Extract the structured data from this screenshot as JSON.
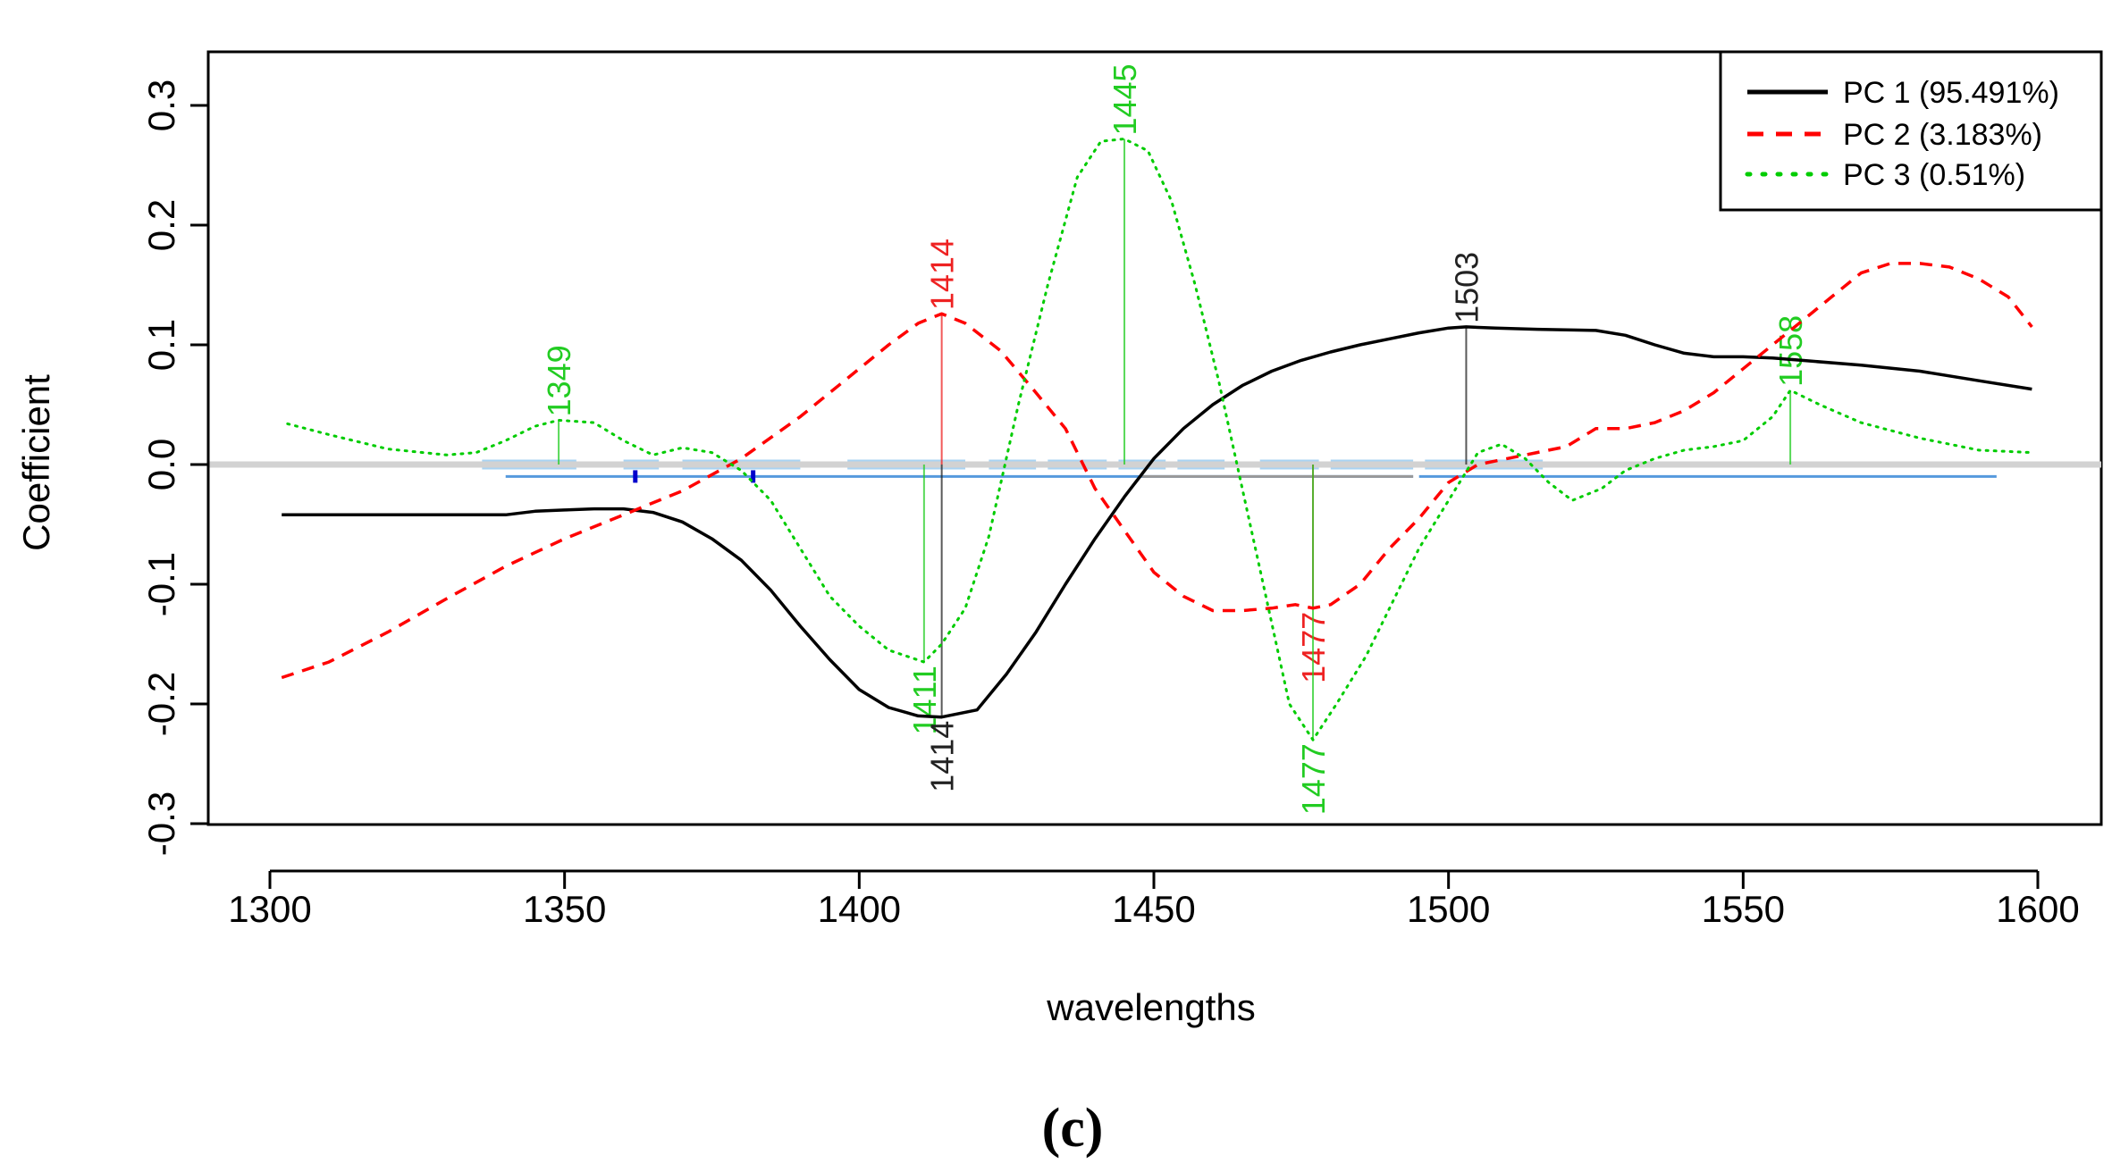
{
  "panel_label": "(c)",
  "chart_data": {
    "type": "line",
    "title": "",
    "xlabel": "wavelengths",
    "ylabel": "Coefficient",
    "xlim": [
      1290,
      1600
    ],
    "ylim": [
      -0.3,
      0.33
    ],
    "xticks": [
      1300,
      1350,
      1400,
      1450,
      1500,
      1550,
      1600
    ],
    "xtick_labels": [
      "1300",
      "1350",
      "1400",
      "1450",
      "1500",
      "1550",
      "1600"
    ],
    "yticks": [
      -0.3,
      -0.2,
      -0.1,
      0.0,
      0.1,
      0.2,
      0.3
    ],
    "ytick_labels": [
      "-0.3",
      "-0.2",
      "-0.1",
      "0.0",
      "0.1",
      "0.2",
      "0.3"
    ],
    "zero_line": true,
    "legend_position": "top-right",
    "series": [
      {
        "name": "PC 1 (95.491%)",
        "color": "#000000",
        "style": "solid",
        "points": [
          [
            1302,
            -0.042
          ],
          [
            1310,
            -0.042
          ],
          [
            1320,
            -0.042
          ],
          [
            1330,
            -0.042
          ],
          [
            1340,
            -0.042
          ],
          [
            1345,
            -0.039
          ],
          [
            1350,
            -0.038
          ],
          [
            1355,
            -0.037
          ],
          [
            1360,
            -0.037
          ],
          [
            1365,
            -0.04
          ],
          [
            1370,
            -0.048
          ],
          [
            1375,
            -0.062
          ],
          [
            1380,
            -0.08
          ],
          [
            1385,
            -0.105
          ],
          [
            1390,
            -0.135
          ],
          [
            1395,
            -0.163
          ],
          [
            1400,
            -0.188
          ],
          [
            1405,
            -0.203
          ],
          [
            1410,
            -0.21
          ],
          [
            1414,
            -0.211
          ],
          [
            1420,
            -0.205
          ],
          [
            1425,
            -0.175
          ],
          [
            1430,
            -0.14
          ],
          [
            1435,
            -0.1
          ],
          [
            1440,
            -0.062
          ],
          [
            1445,
            -0.027
          ],
          [
            1450,
            0.005
          ],
          [
            1455,
            0.03
          ],
          [
            1460,
            0.05
          ],
          [
            1465,
            0.066
          ],
          [
            1470,
            0.078
          ],
          [
            1475,
            0.087
          ],
          [
            1480,
            0.094
          ],
          [
            1485,
            0.1
          ],
          [
            1490,
            0.105
          ],
          [
            1495,
            0.11
          ],
          [
            1500,
            0.114
          ],
          [
            1503,
            0.115
          ],
          [
            1508,
            0.114
          ],
          [
            1515,
            0.113
          ],
          [
            1525,
            0.112
          ],
          [
            1530,
            0.108
          ],
          [
            1535,
            0.1
          ],
          [
            1540,
            0.093
          ],
          [
            1545,
            0.09
          ],
          [
            1550,
            0.09
          ],
          [
            1555,
            0.089
          ],
          [
            1560,
            0.087
          ],
          [
            1570,
            0.083
          ],
          [
            1580,
            0.078
          ],
          [
            1590,
            0.07
          ],
          [
            1599,
            0.063
          ]
        ]
      },
      {
        "name": "PC 2 (3.183%)",
        "color": "#ff0000",
        "style": "dashed",
        "points": [
          [
            1302,
            -0.178
          ],
          [
            1310,
            -0.165
          ],
          [
            1320,
            -0.14
          ],
          [
            1330,
            -0.112
          ],
          [
            1340,
            -0.085
          ],
          [
            1350,
            -0.062
          ],
          [
            1360,
            -0.042
          ],
          [
            1370,
            -0.022
          ],
          [
            1380,
            0.005
          ],
          [
            1390,
            0.04
          ],
          [
            1400,
            0.08
          ],
          [
            1405,
            0.1
          ],
          [
            1410,
            0.118
          ],
          [
            1414,
            0.126
          ],
          [
            1418,
            0.118
          ],
          [
            1424,
            0.095
          ],
          [
            1430,
            0.06
          ],
          [
            1435,
            0.03
          ],
          [
            1440,
            -0.02
          ],
          [
            1445,
            -0.055
          ],
          [
            1450,
            -0.09
          ],
          [
            1455,
            -0.11
          ],
          [
            1460,
            -0.122
          ],
          [
            1465,
            -0.122
          ],
          [
            1470,
            -0.12
          ],
          [
            1474,
            -0.117
          ],
          [
            1477,
            -0.12
          ],
          [
            1480,
            -0.117
          ],
          [
            1485,
            -0.1
          ],
          [
            1490,
            -0.07
          ],
          [
            1495,
            -0.045
          ],
          [
            1500,
            -0.015
          ],
          [
            1505,
            0.0
          ],
          [
            1510,
            0.005
          ],
          [
            1515,
            0.01
          ],
          [
            1520,
            0.015
          ],
          [
            1525,
            0.03
          ],
          [
            1530,
            0.03
          ],
          [
            1535,
            0.035
          ],
          [
            1540,
            0.045
          ],
          [
            1545,
            0.06
          ],
          [
            1550,
            0.08
          ],
          [
            1555,
            0.1
          ],
          [
            1560,
            0.12
          ],
          [
            1565,
            0.14
          ],
          [
            1570,
            0.16
          ],
          [
            1575,
            0.168
          ],
          [
            1580,
            0.168
          ],
          [
            1585,
            0.165
          ],
          [
            1590,
            0.155
          ],
          [
            1595,
            0.14
          ],
          [
            1599,
            0.115
          ]
        ]
      },
      {
        "name": "PC 3 (0.51%)",
        "color": "#00cc00",
        "style": "dotted",
        "points": [
          [
            1303,
            0.034
          ],
          [
            1310,
            0.025
          ],
          [
            1320,
            0.013
          ],
          [
            1330,
            0.008
          ],
          [
            1335,
            0.01
          ],
          [
            1340,
            0.02
          ],
          [
            1345,
            0.032
          ],
          [
            1349,
            0.037
          ],
          [
            1355,
            0.035
          ],
          [
            1360,
            0.02
          ],
          [
            1365,
            0.008
          ],
          [
            1370,
            0.014
          ],
          [
            1375,
            0.01
          ],
          [
            1380,
            -0.005
          ],
          [
            1385,
            -0.03
          ],
          [
            1390,
            -0.07
          ],
          [
            1395,
            -0.11
          ],
          [
            1400,
            -0.135
          ],
          [
            1405,
            -0.155
          ],
          [
            1411,
            -0.165
          ],
          [
            1414,
            -0.15
          ],
          [
            1418,
            -0.12
          ],
          [
            1422,
            -0.06
          ],
          [
            1427,
            0.05
          ],
          [
            1432,
            0.15
          ],
          [
            1437,
            0.24
          ],
          [
            1441,
            0.27
          ],
          [
            1445,
            0.272
          ],
          [
            1449,
            0.262
          ],
          [
            1453,
            0.22
          ],
          [
            1457,
            0.15
          ],
          [
            1461,
            0.07
          ],
          [
            1465,
            -0.02
          ],
          [
            1469,
            -0.11
          ],
          [
            1473,
            -0.2
          ],
          [
            1477,
            -0.23
          ],
          [
            1481,
            -0.2
          ],
          [
            1486,
            -0.16
          ],
          [
            1490,
            -0.12
          ],
          [
            1495,
            -0.07
          ],
          [
            1500,
            -0.03
          ],
          [
            1505,
            0.01
          ],
          [
            1509,
            0.017
          ],
          [
            1513,
            0.005
          ],
          [
            1517,
            -0.015
          ],
          [
            1521,
            -0.03
          ],
          [
            1526,
            -0.02
          ],
          [
            1530,
            -0.005
          ],
          [
            1535,
            0.005
          ],
          [
            1540,
            0.012
          ],
          [
            1545,
            0.015
          ],
          [
            1550,
            0.02
          ],
          [
            1555,
            0.04
          ],
          [
            1558,
            0.062
          ],
          [
            1563,
            0.05
          ],
          [
            1570,
            0.035
          ],
          [
            1580,
            0.022
          ],
          [
            1590,
            0.012
          ],
          [
            1599,
            0.01
          ]
        ]
      }
    ],
    "peak_markers": [
      {
        "label": "1349",
        "x": 1349,
        "y": 0.037,
        "color": "#22cc22",
        "label_at": "above"
      },
      {
        "label": "1414",
        "x": 1414,
        "y": 0.126,
        "color": "#ee2222",
        "label_at": "above"
      },
      {
        "label": "1445",
        "x": 1445,
        "y": 0.272,
        "color": "#22cc22",
        "label_at": "above"
      },
      {
        "label": "1503",
        "x": 1503,
        "y": 0.115,
        "color": "#222222",
        "label_at": "above"
      },
      {
        "label": "1558",
        "x": 1558,
        "y": 0.062,
        "color": "#22cc22",
        "label_at": "above"
      },
      {
        "label": "1411",
        "x": 1411,
        "y": -0.165,
        "color": "#22cc22",
        "label_at": "below"
      },
      {
        "label": "1414",
        "x": 1414,
        "y": -0.211,
        "color": "#222222",
        "label_at": "below"
      },
      {
        "label": "1477",
        "x": 1477,
        "y": -0.12,
        "color": "#ee2222",
        "label_at": "below"
      },
      {
        "label": "1477",
        "x": 1477,
        "y": -0.23,
        "color": "#22cc22",
        "label_at": "below"
      }
    ],
    "bands": [
      {
        "x": [
          1336,
          1352
        ],
        "y": 0.0
      },
      {
        "x": [
          1360,
          1366
        ],
        "y": 0.0
      },
      {
        "x": [
          1370,
          1390
        ],
        "y": 0.0
      },
      {
        "x": [
          1398,
          1418
        ],
        "y": 0.0
      },
      {
        "x": [
          1422,
          1430
        ],
        "y": 0.0
      },
      {
        "x": [
          1432,
          1442
        ],
        "y": 0.0
      },
      {
        "x": [
          1444,
          1452
        ],
        "y": 0.0
      },
      {
        "x": [
          1454,
          1462
        ],
        "y": 0.0
      },
      {
        "x": [
          1468,
          1478
        ],
        "y": 0.0
      },
      {
        "x": [
          1480,
          1494
        ],
        "y": 0.0
      },
      {
        "x": [
          1496,
          1516
        ],
        "y": 0.0
      }
    ],
    "baseline_segments": [
      {
        "x": [
          1340,
          1494
        ],
        "y": -0.01,
        "color": "#5599dd"
      },
      {
        "x": [
          1448,
          1494
        ],
        "y": -0.01,
        "color": "#999999"
      },
      {
        "x": [
          1495,
          1593
        ],
        "y": -0.01,
        "color": "#5599dd"
      }
    ],
    "baseline_ticks": [
      1362,
      1382
    ],
    "legend": [
      {
        "label": "PC 1 (95.491%)",
        "color": "#000000",
        "style": "solid"
      },
      {
        "label": "PC 2 (3.183%)",
        "color": "#ff0000",
        "style": "dashed"
      },
      {
        "label": "PC 3 (0.51%)",
        "color": "#00cc00",
        "style": "dotted"
      }
    ]
  }
}
